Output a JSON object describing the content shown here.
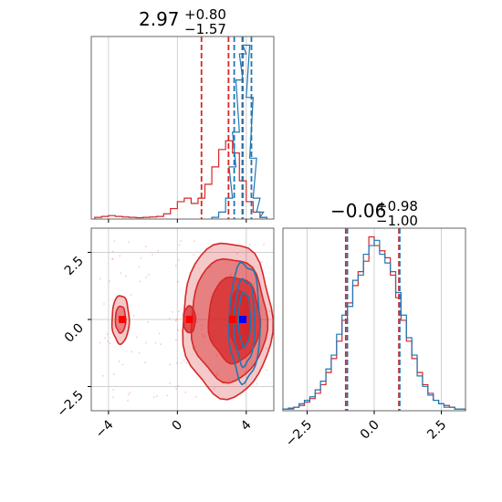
{
  "chart_data": [
    {
      "type": "histogram",
      "panel": "top-left",
      "title_value": "2.97",
      "title_sup": "+0.80",
      "title_sub": "−1.57",
      "xlim": [
        -5.0,
        5.6
      ],
      "grid": true,
      "series": [
        {
          "color": "#d62728",
          "quantile_lines": [
            1.4,
            2.97,
            3.77
          ],
          "x": [
            -4.6,
            -4.2,
            -3.8,
            -3.4,
            -3.0,
            -2.6,
            -2.2,
            -1.8,
            -1.4,
            -1.0,
            -0.6,
            -0.2,
            0.2,
            0.6,
            1.0,
            1.4,
            1.8,
            2.2,
            2.6,
            3.0,
            3.4,
            3.8,
            4.2,
            4.6,
            5.0
          ],
          "y": [
            0.01,
            0.015,
            0.02,
            0.015,
            0.012,
            0.01,
            0.008,
            0.01,
            0.012,
            0.015,
            0.03,
            0.06,
            0.1,
            0.12,
            0.09,
            0.12,
            0.2,
            0.3,
            0.4,
            0.45,
            0.38,
            0.22,
            0.1,
            0.04,
            0.01
          ]
        },
        {
          "color": "#1f77b4",
          "quantile_lines": [
            3.3,
            3.8,
            4.3
          ],
          "x": [
            2.2,
            2.6,
            3.0,
            3.2,
            3.4,
            3.6,
            3.8,
            4.0,
            4.2,
            4.4,
            4.6,
            4.8,
            5.0
          ],
          "y": [
            0.01,
            0.04,
            0.12,
            0.3,
            0.5,
            0.8,
            0.95,
            1.0,
            0.7,
            0.35,
            0.12,
            0.04,
            0.01
          ]
        }
      ]
    },
    {
      "type": "histogram",
      "panel": "bottom-right",
      "title_value": "−0.06",
      "title_sup": "+0.98",
      "title_sub": "−1.00",
      "xlim": [
        -3.4,
        3.4
      ],
      "xticks": [
        "−2.5",
        "0.0",
        "2.5"
      ],
      "xtick_values": [
        -2.5,
        0.0,
        2.5
      ],
      "grid": true,
      "series": [
        {
          "color": "#d62728",
          "quantile_lines": [
            -1.06,
            0.92
          ],
          "x": [
            -3.3,
            -3.1,
            -2.9,
            -2.7,
            -2.5,
            -2.3,
            -2.1,
            -1.9,
            -1.7,
            -1.5,
            -1.3,
            -1.1,
            -0.9,
            -0.7,
            -0.5,
            -0.3,
            -0.1,
            0.1,
            0.3,
            0.5,
            0.7,
            0.9,
            1.1,
            1.3,
            1.5,
            1.7,
            1.9,
            2.1,
            2.3,
            2.5,
            2.7,
            2.9,
            3.1,
            3.3
          ],
          "y": [
            0.01,
            0.01,
            0.02,
            0.03,
            0.05,
            0.07,
            0.1,
            0.15,
            0.22,
            0.3,
            0.4,
            0.52,
            0.62,
            0.72,
            0.8,
            0.86,
            1.0,
            0.95,
            0.92,
            0.88,
            0.78,
            0.65,
            0.52,
            0.4,
            0.3,
            0.22,
            0.15,
            0.1,
            0.06,
            0.04,
            0.03,
            0.02,
            0.01,
            0.01
          ]
        },
        {
          "color": "#1f77b4",
          "quantile_lines": [
            -1.0,
            0.95
          ],
          "x": [
            -3.3,
            -3.1,
            -2.9,
            -2.7,
            -2.5,
            -2.3,
            -2.1,
            -1.9,
            -1.7,
            -1.5,
            -1.3,
            -1.1,
            -0.9,
            -0.7,
            -0.5,
            -0.3,
            -0.1,
            0.1,
            0.3,
            0.5,
            0.7,
            0.9,
            1.1,
            1.3,
            1.5,
            1.7,
            1.9,
            2.1,
            2.3,
            2.5,
            2.7,
            2.9,
            3.1,
            3.3
          ],
          "y": [
            0.01,
            0.015,
            0.02,
            0.04,
            0.06,
            0.08,
            0.12,
            0.17,
            0.24,
            0.32,
            0.44,
            0.55,
            0.6,
            0.75,
            0.78,
            0.9,
            0.95,
            0.98,
            0.9,
            0.85,
            0.8,
            0.68,
            0.55,
            0.42,
            0.32,
            0.2,
            0.14,
            0.09,
            0.06,
            0.04,
            0.02,
            0.02,
            0.01,
            0.01
          ]
        }
      ]
    },
    {
      "type": "contour",
      "panel": "bottom-left",
      "xlim": [
        -5.0,
        5.6
      ],
      "ylim": [
        -3.4,
        3.4
      ],
      "xticks": [
        "−4",
        "0",
        "4"
      ],
      "xtick_values": [
        -4,
        0,
        4
      ],
      "yticks": [
        "2.5",
        "0.0",
        "−2.5"
      ],
      "ytick_values": [
        2.5,
        0.0,
        -2.5
      ],
      "grid": true,
      "series": [
        {
          "color": "#d62728",
          "markers": [
            [
              -3.2,
              0.0
            ],
            [
              0.7,
              0.0
            ],
            [
              3.2,
              0.0
            ]
          ],
          "levels": [
            {
              "opacity": 0.25,
              "blobs": [
                {
                  "cx": 2.9,
                  "cy": 0.0,
                  "rx": 2.6,
                  "ry": 2.9
                },
                {
                  "cx": -3.3,
                  "cy": 0.0,
                  "rx": 0.5,
                  "ry": 0.9
                }
              ]
            },
            {
              "opacity": 0.45,
              "blobs": [
                {
                  "cx": 3.0,
                  "cy": 0.0,
                  "rx": 2.2,
                  "ry": 2.3
                },
                {
                  "cx": -3.3,
                  "cy": 0.0,
                  "rx": 0.3,
                  "ry": 0.5
                }
              ]
            },
            {
              "opacity": 0.75,
              "blobs": [
                {
                  "cx": 3.3,
                  "cy": 0.0,
                  "rx": 1.5,
                  "ry": 1.6
                },
                {
                  "cx": 0.7,
                  "cy": 0.0,
                  "rx": 0.35,
                  "ry": 0.5
                }
              ]
            },
            {
              "opacity": 0.9,
              "blobs": [
                {
                  "cx": 3.6,
                  "cy": 0.0,
                  "rx": 0.6,
                  "ry": 1.1
                }
              ]
            }
          ]
        },
        {
          "color": "#1f77b4",
          "markers": [
            [
              3.8,
              0.0
            ]
          ],
          "levels": [
            {
              "blobs": [
                {
                  "cx": 3.9,
                  "cy": -0.1,
                  "rx": 0.9,
                  "ry": 2.2
                }
              ]
            },
            {
              "blobs": [
                {
                  "cx": 3.9,
                  "cy": -0.1,
                  "rx": 0.6,
                  "ry": 1.6
                }
              ]
            },
            {
              "blobs": [
                {
                  "cx": 3.9,
                  "cy": 0.0,
                  "rx": 0.35,
                  "ry": 1.0
                }
              ]
            }
          ]
        }
      ]
    }
  ]
}
